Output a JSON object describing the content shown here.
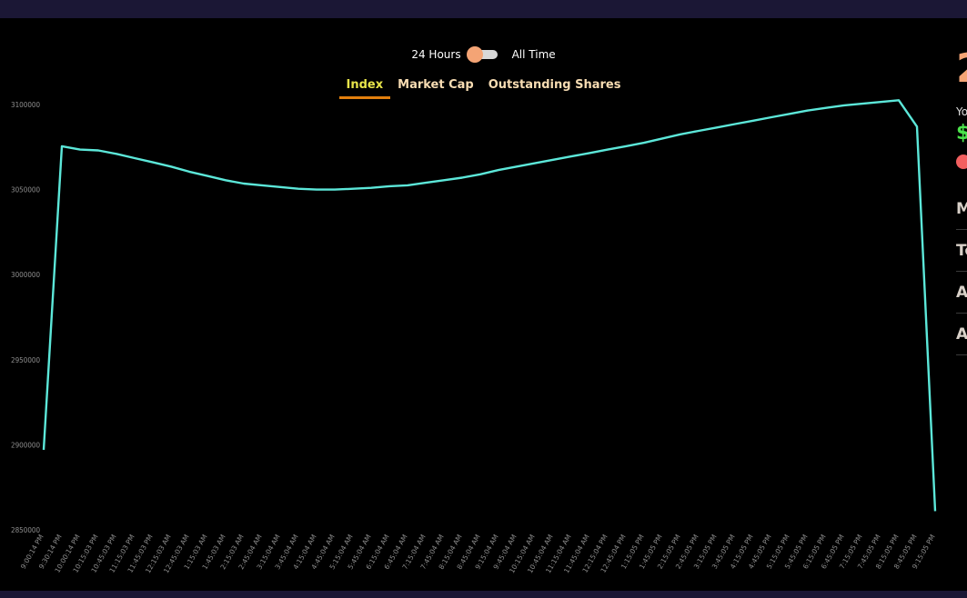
{
  "toggle": {
    "left_label": "24 Hours",
    "right_label": "All Time"
  },
  "tabs": [
    {
      "label": "Index",
      "active": true
    },
    {
      "label": "Market Cap",
      "active": false
    },
    {
      "label": "Outstanding Shares",
      "active": false
    }
  ],
  "side_panel": {
    "big_number": "2",
    "small_text": "Yo",
    "dollar": "$",
    "rows": [
      "M",
      "To",
      "A",
      "A"
    ]
  },
  "colors": {
    "line": "#5ce7d9",
    "accent": "#f4a475",
    "active_tab": "#e7e44a",
    "tab_underline": "#e27f0d"
  },
  "chart_data": {
    "type": "line",
    "yticks": [
      2850000,
      2900000,
      2950000,
      3000000,
      3050000,
      3100000
    ],
    "ylim": [
      2850000,
      3100000
    ],
    "x": [
      "9:00:14 PM",
      "9:30:14 PM",
      "10:00:14 PM",
      "10:15:03 PM",
      "10:45:03 PM",
      "11:15:03 PM",
      "11:45:03 PM",
      "12:15:03 AM",
      "12:45:03 AM",
      "1:15:03 AM",
      "1:45:03 AM",
      "2:15:03 AM",
      "2:45:04 AM",
      "3:15:04 AM",
      "3:45:04 AM",
      "4:15:04 AM",
      "4:45:04 AM",
      "5:15:04 AM",
      "5:45:04 AM",
      "6:15:04 AM",
      "6:45:04 AM",
      "7:15:04 AM",
      "7:45:04 AM",
      "8:15:04 AM",
      "8:45:04 AM",
      "9:15:04 AM",
      "9:45:04 AM",
      "10:15:04 AM",
      "10:45:04 AM",
      "11:15:04 AM",
      "11:45:04 AM",
      "12:15:04 PM",
      "12:45:04 PM",
      "1:15:05 PM",
      "1:45:05 PM",
      "2:15:05 PM",
      "2:45:05 PM",
      "3:15:05 PM",
      "3:45:05 PM",
      "4:15:05 PM",
      "4:45:05 PM",
      "5:15:05 PM",
      "5:45:05 PM",
      "6:15:05 PM",
      "6:45:05 PM",
      "7:15:05 PM",
      "7:45:05 PM",
      "8:15:05 PM",
      "8:45:05 PM",
      "9:15:05 PM"
    ],
    "values": [
      2897000,
      3075500,
      3073500,
      3073000,
      3071000,
      3068500,
      3066000,
      3063500,
      3060500,
      3058000,
      3055500,
      3053500,
      3052500,
      3051500,
      3050500,
      3050000,
      3050000,
      3050500,
      3051000,
      3052000,
      3052500,
      3054000,
      3055500,
      3057000,
      3059000,
      3061500,
      3063500,
      3065500,
      3067500,
      3069500,
      3071500,
      3073500,
      3075500,
      3077500,
      3080000,
      3082500,
      3084500,
      3086500,
      3088500,
      3090500,
      3092500,
      3094500,
      3096500,
      3098000,
      3099500,
      3100500,
      3101500,
      3102500,
      3087000,
      2861000
    ]
  }
}
